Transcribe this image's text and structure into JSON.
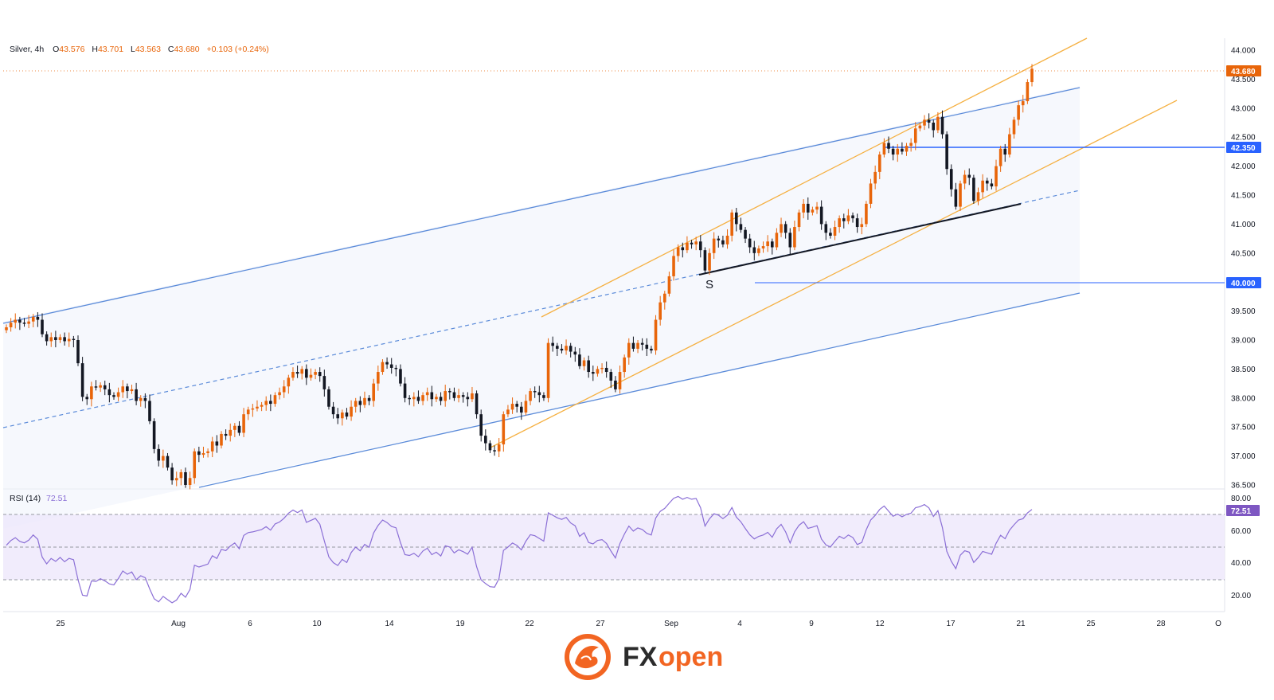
{
  "header": {
    "symbol": "Silver, 4h",
    "o_label": "O",
    "o": "43.576",
    "h_label": "H",
    "h": "43.701",
    "l_label": "L",
    "l": "43.563",
    "c_label": "C",
    "c": "43.680",
    "change": "+0.103 (+0.24%)"
  },
  "colors": {
    "accent": "#e8650a",
    "channel": "#5b8bd9",
    "orange_channel": "#f5b041",
    "rsi": "#8b6fd6",
    "rsi_band": "#ede7fb",
    "level": "#2962ff"
  },
  "chart_data": {
    "type": "candlestick",
    "y_ticks": [
      "44.000",
      "43.500",
      "43.000",
      "42.500",
      "42.000",
      "41.500",
      "41.000",
      "40.500",
      "40.000",
      "39.500",
      "39.000",
      "38.500",
      "38.000",
      "37.500",
      "37.000",
      "36.500"
    ],
    "y_range": [
      36.5,
      44.2
    ],
    "x_ticks": [
      "25",
      "Aug",
      "6",
      "10",
      "14",
      "19",
      "22",
      "27",
      "Sep",
      "4",
      "9",
      "12",
      "17",
      "21",
      "25",
      "28",
      "O"
    ],
    "current_price_tag": "43.680",
    "level_tags": [
      "42.350",
      "40.000"
    ],
    "annotation": "S",
    "series_close": [
      39.22,
      39.3,
      39.35,
      39.3,
      39.28,
      39.32,
      39.4,
      39.35,
      39.1,
      38.98,
      39.05,
      39.0,
      39.05,
      38.98,
      39.02,
      39.0,
      38.6,
      38.02,
      37.98,
      38.2,
      38.18,
      38.22,
      38.15,
      38.05,
      38.02,
      38.1,
      38.2,
      38.12,
      38.15,
      37.95,
      38.0,
      37.95,
      37.6,
      37.12,
      36.92,
      37.0,
      36.8,
      36.58,
      36.62,
      36.72,
      36.5,
      36.62,
      37.08,
      37.02,
      37.05,
      37.08,
      37.25,
      37.18,
      37.38,
      37.35,
      37.45,
      37.52,
      37.4,
      37.72,
      37.8,
      37.82,
      37.85,
      37.88,
      37.95,
      37.9,
      38.05,
      38.1,
      38.2,
      38.35,
      38.45,
      38.42,
      38.5,
      38.35,
      38.4,
      38.45,
      38.38,
      38.15,
      37.85,
      37.72,
      37.65,
      37.75,
      37.68,
      37.85,
      37.95,
      37.88,
      38.0,
      37.95,
      38.25,
      38.45,
      38.62,
      38.58,
      38.52,
      38.5,
      38.25,
      38.0,
      37.98,
      38.02,
      37.95,
      38.05,
      38.1,
      37.98,
      38.02,
      37.95,
      38.12,
      38.1,
      38.0,
      38.05,
      38.02,
      37.98,
      38.08,
      37.72,
      37.35,
      37.22,
      37.1,
      37.08,
      37.2,
      37.72,
      37.8,
      37.9,
      37.85,
      37.75,
      37.95,
      38.12,
      38.1,
      38.05,
      38.0,
      38.95,
      38.9,
      38.85,
      38.82,
      38.9,
      38.8,
      38.75,
      38.55,
      38.65,
      38.45,
      38.42,
      38.5,
      38.52,
      38.45,
      38.3,
      38.15,
      38.45,
      38.7,
      38.95,
      38.85,
      38.95,
      38.92,
      38.85,
      38.82,
      39.35,
      39.65,
      39.8,
      40.1,
      40.45,
      40.6,
      40.55,
      40.68,
      40.65,
      40.7,
      40.55,
      40.2,
      40.5,
      40.75,
      40.72,
      40.65,
      40.8,
      41.2,
      41.0,
      40.9,
      40.75,
      40.6,
      40.5,
      40.58,
      40.62,
      40.7,
      40.6,
      40.85,
      41.0,
      40.85,
      40.6,
      40.95,
      41.2,
      41.35,
      41.2,
      41.25,
      41.3,
      41.0,
      40.85,
      40.8,
      40.95,
      41.1,
      41.05,
      41.15,
      41.1,
      40.95,
      41.0,
      41.35,
      41.7,
      41.9,
      42.2,
      42.4,
      42.3,
      42.2,
      42.3,
      42.25,
      42.35,
      42.4,
      42.65,
      42.7,
      42.8,
      42.75,
      42.62,
      42.85,
      42.55,
      41.95,
      41.6,
      41.3,
      41.7,
      41.85,
      41.8,
      41.4,
      41.55,
      41.75,
      41.7,
      41.65,
      42.0,
      42.3,
      42.2,
      42.55,
      42.8,
      43.05,
      43.12,
      43.45,
      43.68
    ]
  }
}
